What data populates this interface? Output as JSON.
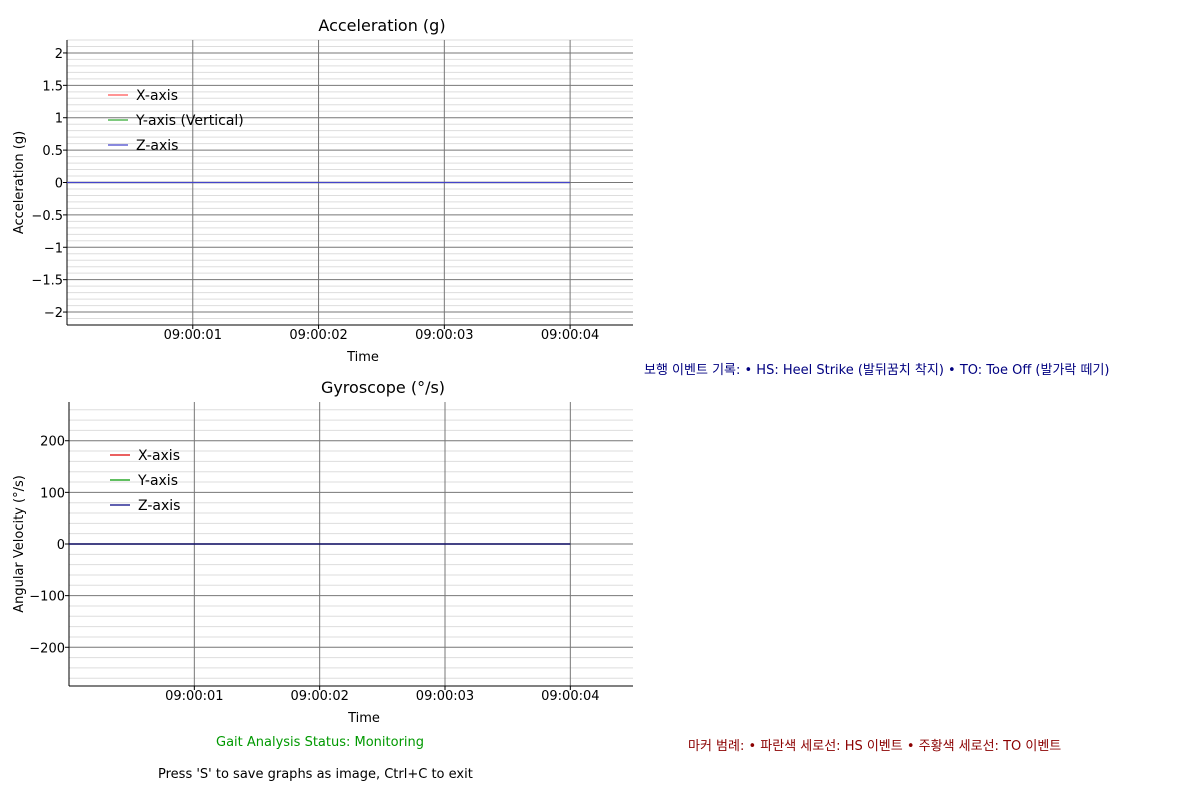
{
  "chart_data": [
    {
      "type": "line",
      "title": "Acceleration (g)",
      "xlabel": "Time",
      "ylabel": "Acceleration (g)",
      "x_ticks": [
        "09:00:01",
        "09:00:02",
        "09:00:03",
        "09:00:04"
      ],
      "x_range": [
        "09:00:00",
        "09:00:04.5"
      ],
      "ylim": [
        -2.2,
        2.2
      ],
      "y_major": [
        -2,
        -1.5,
        -1,
        -0.5,
        0,
        0.5,
        1,
        1.5,
        2
      ],
      "y_labels": [
        "−2",
        "−1.5",
        "−1",
        "−0.5",
        "0",
        "0.5",
        "1",
        "1.5",
        "2"
      ],
      "grid": true,
      "legend": "top-left",
      "series": [
        {
          "name": "X-axis",
          "color": "#ff5555",
          "x": [
            "09:00:00",
            "09:00:04"
          ],
          "y": [
            0,
            0
          ]
        },
        {
          "name": "Y-axis (Vertical)",
          "color": "#33aa33",
          "x": [
            "09:00:00",
            "09:00:04"
          ],
          "y": [
            0,
            0
          ]
        },
        {
          "name": "Z-axis",
          "color": "#4444cc",
          "x": [
            "09:00:00",
            "09:00:04"
          ],
          "y": [
            0,
            0
          ]
        }
      ]
    },
    {
      "type": "line",
      "title": "Gyroscope (°/s)",
      "xlabel": "Time",
      "ylabel": "Angular Velocity (°/s)",
      "x_ticks": [
        "09:00:01",
        "09:00:02",
        "09:00:03",
        "09:00:04"
      ],
      "x_range": [
        "09:00:00",
        "09:00:04.5"
      ],
      "ylim": [
        -275,
        275
      ],
      "y_major": [
        -200,
        -100,
        0,
        100,
        200
      ],
      "y_labels": [
        "−200",
        "−100",
        "0",
        "100",
        "200"
      ],
      "grid": true,
      "legend": "top-left",
      "series": [
        {
          "name": "X-axis",
          "color": "#dd0000",
          "x": [
            "09:00:00",
            "09:00:04"
          ],
          "y": [
            0,
            0
          ]
        },
        {
          "name": "Y-axis",
          "color": "#009900",
          "x": [
            "09:00:00",
            "09:00:04"
          ],
          "y": [
            0,
            0
          ]
        },
        {
          "name": "Z-axis",
          "color": "#000080",
          "x": [
            "09:00:00",
            "09:00:04"
          ],
          "y": [
            0,
            0
          ]
        }
      ]
    }
  ],
  "notes": {
    "events": "보행 이벤트 기록: • HS: Heel Strike (발뒤꿈치 착지) • TO: Toe Off (발가락 떼기)",
    "status": "Gait Analysis Status: Monitoring",
    "markers": "마커 범례: • 파란색 세로선: HS 이벤트 • 주황색 세로선: TO 이벤트",
    "help": "Press 'S' to save graphs as image, Ctrl+C to exit"
  }
}
